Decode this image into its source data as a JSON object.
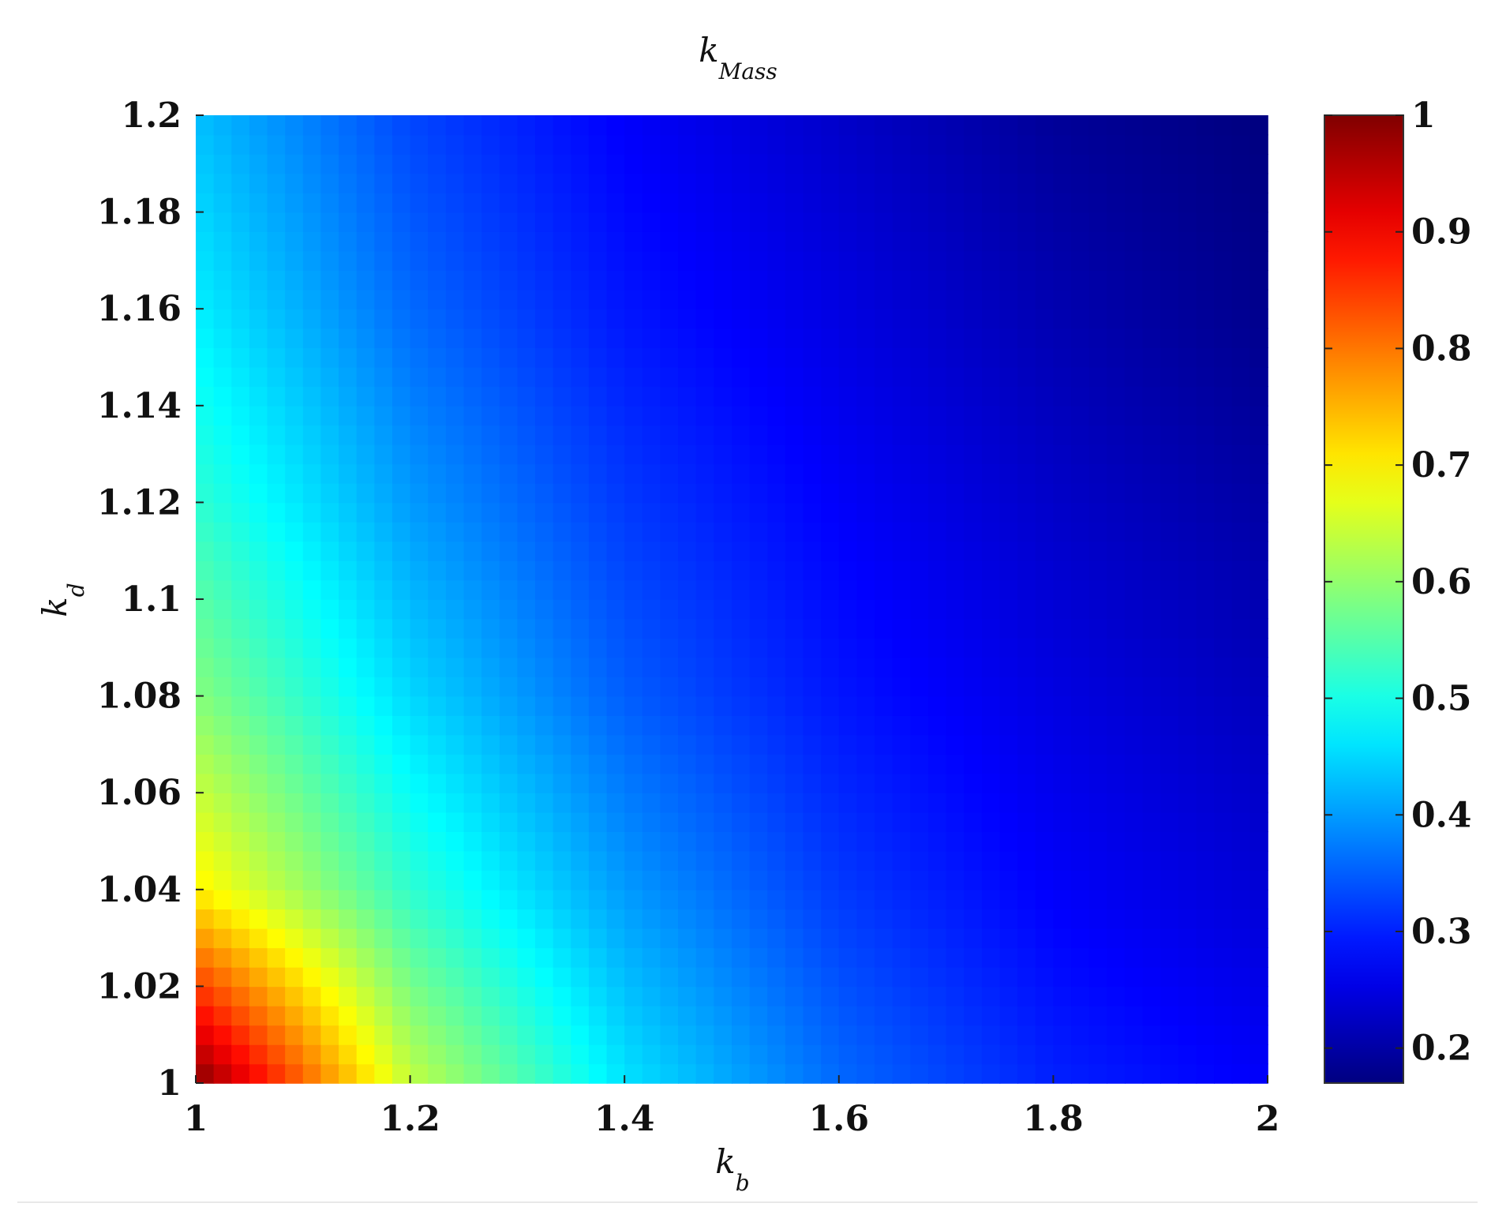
{
  "chart_data": {
    "type": "heatmap",
    "title": {
      "base": "k",
      "subscript": "Mass"
    },
    "xlabel": {
      "base": "k",
      "subscript": "b"
    },
    "ylabel": {
      "base": "k",
      "subscript": "d"
    },
    "xlim": [
      1,
      2
    ],
    "ylim": [
      1,
      1.2
    ],
    "x_ticks": [
      "1",
      "1.2",
      "1.4",
      "1.6",
      "1.8",
      "2"
    ],
    "y_ticks": [
      "1",
      "1.02",
      "1.04",
      "1.06",
      "1.08",
      "1.1",
      "1.12",
      "1.14",
      "1.16",
      "1.18",
      "1.2"
    ],
    "colorbar": {
      "colormap": "jet",
      "range": [
        0.17,
        1
      ],
      "ticks": [
        "0.2",
        "0.3",
        "0.4",
        "0.5",
        "0.6",
        "0.7",
        "0.8",
        "0.9",
        "1"
      ]
    },
    "grid": false,
    "z_samples": {
      "x": [
        1,
        1.2,
        1.4,
        1.6,
        1.8,
        2
      ],
      "y": [
        1,
        1.04,
        1.08,
        1.12,
        1.16,
        1.2
      ],
      "z": [
        [
          1.0,
          0.64,
          0.46,
          0.36,
          0.3,
          0.27
        ],
        [
          0.7,
          0.52,
          0.4,
          0.32,
          0.27,
          0.24
        ],
        [
          0.59,
          0.45,
          0.35,
          0.29,
          0.25,
          0.22
        ],
        [
          0.52,
          0.4,
          0.32,
          0.27,
          0.23,
          0.2
        ],
        [
          0.47,
          0.36,
          0.29,
          0.25,
          0.21,
          0.18
        ],
        [
          0.43,
          0.33,
          0.27,
          0.23,
          0.19,
          0.17
        ]
      ]
    }
  }
}
